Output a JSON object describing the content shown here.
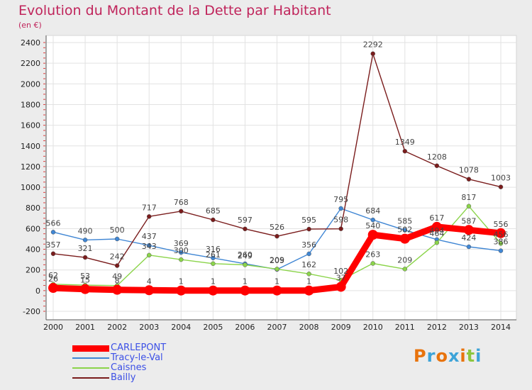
{
  "header": {
    "title": "Evolution du Montant de la Dette par Habitant",
    "unit": "(en €)"
  },
  "logo": {
    "text": "Proxiti",
    "colors": [
      "#e8730c",
      "#3da3d8",
      "#e8730c",
      "#3da3d8",
      "#e8730c",
      "#8cc63f",
      "#3da3d8"
    ]
  },
  "chart_data": {
    "type": "line",
    "title": "Evolution du Montant de la Dette par Habitant",
    "subtitle": "(en €)",
    "xlabel": "",
    "ylabel": "",
    "x": [
      "2000",
      "2001",
      "2002",
      "2003",
      "2004",
      "2005",
      "2006",
      "2007",
      "2008",
      "2009",
      "2010",
      "2011",
      "2012",
      "2013",
      "2014"
    ],
    "ylim": [
      -200,
      2400
    ],
    "yticks": [
      "-200",
      "0",
      "200",
      "400",
      "600",
      "800",
      "1000",
      "1200",
      "1400",
      "1600",
      "1800",
      "2000",
      "2200",
      "2400"
    ],
    "grid": true,
    "legend_position": "bottom-left",
    "series": [
      {
        "name": "CARLEPONT",
        "color": "#ff0000",
        "values": [
          26,
          15,
          8,
          4,
          1,
          1,
          1,
          1,
          1,
          37,
          540,
          502,
          617,
          587,
          556
        ],
        "labels": [
          "26",
          "15",
          "8",
          "4",
          "1",
          "1",
          "1",
          "1",
          "1",
          "37",
          "540",
          "502",
          "617",
          "587",
          "556"
        ]
      },
      {
        "name": "Tracy-le-Val",
        "color": "#3f86d4",
        "values": [
          566,
          490,
          500,
          437,
          369,
          316,
          260,
          205,
          356,
          795,
          684,
          585,
          494,
          424,
          386
        ],
        "labels": [
          "566",
          "490",
          "500",
          "437",
          "369",
          "316",
          "260",
          "205",
          "356",
          "795",
          "684",
          "585",
          "494",
          "424",
          "386"
        ]
      },
      {
        "name": "Caisnes",
        "color": "#8bd44a",
        "values": [
          62,
          53,
          49,
          343,
          300,
          261,
          249,
          209,
          162,
          102,
          263,
          209,
          464,
          817,
          456
        ],
        "labels": [
          "62",
          "53",
          "49",
          "343",
          "300",
          "261",
          "249",
          "209",
          "162",
          "102",
          "263",
          "209",
          "464",
          "817",
          "456"
        ]
      },
      {
        "name": "Bailly",
        "color": "#7a1c1c",
        "values": [
          357,
          321,
          242,
          717,
          768,
          685,
          597,
          526,
          595,
          598,
          2292,
          1349,
          1208,
          1078,
          1003
        ],
        "labels": [
          "357",
          "321",
          "242",
          "717",
          "768",
          "685",
          "597",
          "526",
          "595",
          "598",
          "2292",
          "1349",
          "1208",
          "1078",
          "1003"
        ]
      }
    ]
  }
}
